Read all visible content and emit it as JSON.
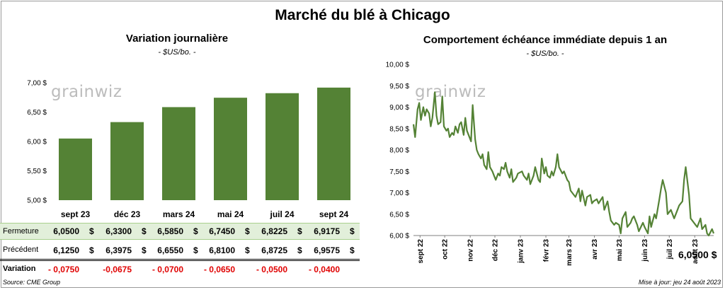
{
  "main_title": "Marché du blé à Chicago",
  "left_panel": {
    "title": "Variation journalière",
    "unit": "- $US/bo. -",
    "watermark": "grainwiz"
  },
  "right_panel": {
    "title": "Comportement échéance immédiate depuis 1 an",
    "unit": "- $US/bo. -",
    "watermark": "grainwiz",
    "last_value_label": "6,0500 $"
  },
  "table": {
    "close_label": "Fermeture",
    "close_values": [
      "6,0500",
      "6,3300",
      "6,5850",
      "6,7450",
      "6,8225",
      "6,9175"
    ],
    "prev_label": "Précédent",
    "prev_values": [
      "6,1250",
      "6,3975",
      "6,6550",
      "6,8100",
      "6,8725",
      "6,9575"
    ],
    "var_label": "Variation",
    "var_values": [
      "- 0,0750",
      "-0,0675",
      "- 0,0700",
      "- 0,0650",
      "- 0,0500",
      "- 0,0400"
    ],
    "currency": "$"
  },
  "footer": {
    "source": "Source: CME Group",
    "updated": "Mise à jour: jeu 24 août 2023"
  },
  "colors": {
    "bar": "#548235",
    "line": "#548235",
    "close_row_bg": "#e2efda",
    "negative": "#e00000"
  },
  "chart_data": [
    {
      "type": "bar",
      "title": "Variation journalière",
      "subtitle": "- $US/bo. -",
      "categories": [
        "sept 23",
        "déc 23",
        "mars 24",
        "mai 24",
        "juil 24",
        "sept 24"
      ],
      "values": [
        6.05,
        6.33,
        6.585,
        6.745,
        6.8225,
        6.9175
      ],
      "ylim": [
        5.0,
        7.0
      ],
      "yticks": [
        5.0,
        5.5,
        6.0,
        6.5,
        7.0
      ],
      "ytick_labels": [
        "5,00 $",
        "5,50 $",
        "6,00 $",
        "6,50 $",
        "7,00 $"
      ],
      "grid": false,
      "legend": "none"
    },
    {
      "type": "line",
      "title": "Comportement échéance immédiate depuis 1 an",
      "subtitle": "- $US/bo. -",
      "ylim": [
        6.0,
        10.0
      ],
      "yticks": [
        6.0,
        6.5,
        7.0,
        7.5,
        8.0,
        8.5,
        9.0,
        9.5,
        10.0
      ],
      "ytick_labels": [
        "6,00 $",
        "6,50 $",
        "7,00 $",
        "7,50 $",
        "8,00 $",
        "8,50 $",
        "9,00 $",
        "9,50 $",
        "10,00 $"
      ],
      "x_range": [
        "2022-08-24",
        "2023-08-24"
      ],
      "x_tick_dates": [
        "2022-09-01",
        "2022-10-01",
        "2022-11-01",
        "2022-12-01",
        "2023-01-01",
        "2023-02-01",
        "2023-03-01",
        "2023-04-01",
        "2023-05-01",
        "2023-06-01",
        "2023-07-01",
        "2023-08-01"
      ],
      "x_tick_labels": [
        "sept 22",
        "oct 22",
        "nov 22",
        "déc 22",
        "janv 23",
        "févr 23",
        "mars 23",
        "avr 23",
        "mai 23",
        "juin 23",
        "juil 23",
        "août 23"
      ],
      "grid": false,
      "legend": "none",
      "series": [
        {
          "x": [
            "2022-08-24",
            "2022-08-26",
            "2022-08-29",
            "2022-08-31",
            "2022-09-02",
            "2022-09-05",
            "2022-09-07",
            "2022-09-09",
            "2022-09-12",
            "2022-09-14",
            "2022-09-16",
            "2022-09-19",
            "2022-09-21",
            "2022-09-23",
            "2022-09-26",
            "2022-09-28",
            "2022-09-30",
            "2022-10-03",
            "2022-10-05",
            "2022-10-07",
            "2022-10-10",
            "2022-10-12",
            "2022-10-14",
            "2022-10-17",
            "2022-10-19",
            "2022-10-21",
            "2022-10-24",
            "2022-10-26",
            "2022-10-28",
            "2022-10-31",
            "2022-11-02",
            "2022-11-04",
            "2022-11-07",
            "2022-11-09",
            "2022-11-11",
            "2022-11-14",
            "2022-11-16",
            "2022-11-18",
            "2022-11-21",
            "2022-11-23",
            "2022-11-25",
            "2022-11-28",
            "2022-11-30",
            "2022-12-02",
            "2022-12-05",
            "2022-12-07",
            "2022-12-09",
            "2022-12-12",
            "2022-12-14",
            "2022-12-16",
            "2022-12-19",
            "2022-12-21",
            "2022-12-23",
            "2022-12-27",
            "2022-12-29",
            "2023-01-03",
            "2023-01-05",
            "2023-01-09",
            "2023-01-11",
            "2023-01-13",
            "2023-01-17",
            "2023-01-19",
            "2023-01-23",
            "2023-01-25",
            "2023-01-27",
            "2023-01-30",
            "2023-02-01",
            "2023-02-03",
            "2023-02-06",
            "2023-02-08",
            "2023-02-10",
            "2023-02-13",
            "2023-02-15",
            "2023-02-17",
            "2023-02-21",
            "2023-02-23",
            "2023-02-27",
            "2023-03-01",
            "2023-03-03",
            "2023-03-07",
            "2023-03-09",
            "2023-03-13",
            "2023-03-15",
            "2023-03-17",
            "2023-03-21",
            "2023-03-23",
            "2023-03-27",
            "2023-03-29",
            "2023-03-31",
            "2023-04-04",
            "2023-04-06",
            "2023-04-11",
            "2023-04-13",
            "2023-04-17",
            "2023-04-19",
            "2023-04-21",
            "2023-04-25",
            "2023-04-27",
            "2023-05-01",
            "2023-05-03",
            "2023-05-05",
            "2023-05-09",
            "2023-05-11",
            "2023-05-15",
            "2023-05-17",
            "2023-05-19",
            "2023-05-23",
            "2023-05-25",
            "2023-05-30",
            "2023-06-01",
            "2023-06-05",
            "2023-06-07",
            "2023-06-09",
            "2023-06-13",
            "2023-06-15",
            "2023-06-19",
            "2023-06-21",
            "2023-06-23",
            "2023-06-27",
            "2023-06-29",
            "2023-07-03",
            "2023-07-05",
            "2023-07-07",
            "2023-07-11",
            "2023-07-13",
            "2023-07-17",
            "2023-07-19",
            "2023-07-21",
            "2023-07-25",
            "2023-07-27",
            "2023-07-31",
            "2023-08-02",
            "2023-08-04",
            "2023-08-08",
            "2023-08-10",
            "2023-08-14",
            "2023-08-16",
            "2023-08-18",
            "2023-08-22",
            "2023-08-24"
          ],
          "y": [
            8.6,
            8.3,
            8.95,
            9.1,
            8.7,
            9.0,
            8.8,
            8.95,
            8.85,
            8.55,
            8.75,
            9.35,
            8.8,
            8.6,
            8.65,
            9.25,
            8.55,
            8.45,
            8.5,
            8.3,
            8.4,
            8.35,
            8.55,
            8.4,
            8.6,
            8.65,
            8.35,
            8.75,
            8.45,
            8.3,
            8.2,
            9.05,
            8.25,
            8.0,
            7.9,
            7.8,
            7.9,
            7.65,
            7.55,
            7.95,
            7.6,
            7.5,
            7.4,
            7.3,
            7.45,
            7.4,
            7.6,
            7.55,
            7.7,
            7.5,
            7.35,
            7.55,
            7.25,
            7.35,
            7.45,
            7.5,
            7.4,
            7.3,
            7.45,
            7.2,
            7.4,
            7.6,
            7.3,
            7.25,
            7.8,
            7.45,
            7.6,
            7.4,
            7.35,
            7.5,
            7.4,
            7.6,
            7.9,
            7.6,
            7.45,
            7.5,
            7.3,
            7.25,
            7.05,
            6.95,
            6.9,
            7.1,
            6.8,
            7.05,
            6.7,
            6.9,
            6.95,
            6.75,
            6.8,
            6.85,
            6.75,
            6.9,
            6.6,
            6.8,
            6.55,
            6.35,
            6.25,
            6.3,
            6.25,
            6.05,
            6.4,
            6.55,
            6.2,
            6.3,
            6.4,
            6.45,
            6.25,
            6.1,
            6.3,
            6.2,
            6.05,
            6.45,
            6.2,
            6.5,
            6.4,
            6.85,
            7.1,
            7.3,
            7.0,
            6.5,
            6.6,
            6.5,
            6.4,
            6.6,
            6.7,
            6.8,
            7.3,
            7.6,
            6.95,
            6.4,
            6.3,
            6.25,
            6.2,
            6.4,
            6.15,
            6.25,
            6.05,
            6.0,
            6.15,
            6.05
          ]
        }
      ]
    }
  ]
}
